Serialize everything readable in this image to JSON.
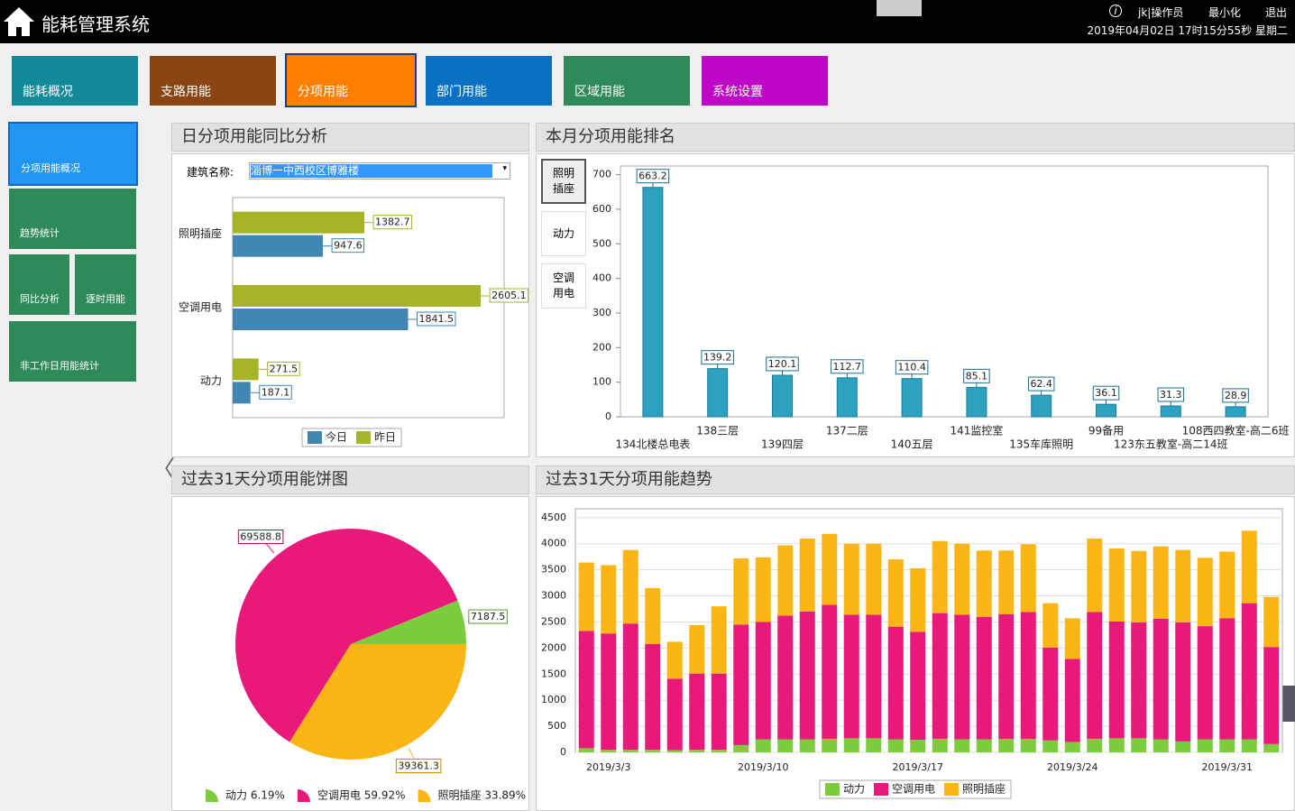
{
  "header": {
    "title": "能耗管理系统",
    "user": "jk|操作员",
    "minimize": "最小化",
    "logout": "退出",
    "datetime": "2019年04月02日 17时15分55秒 星期二"
  },
  "nav": [
    "能耗概况",
    "支路用能",
    "分项用能",
    "部门用能",
    "区域用能",
    "系统设置"
  ],
  "sidebar": [
    "分项用能概况",
    "趋势统计",
    "同比分析",
    "逐时用能",
    "非工作日用能统计"
  ],
  "panels": {
    "building_label": "建筑名称:",
    "building": "淄博一中西校区博雅楼",
    "ranking_tabs": [
      "照明插座",
      "动力",
      "空调用电"
    ]
  },
  "chart_data": [
    {
      "type": "bar",
      "orientation": "horizontal",
      "title": "日分项用能同比分析",
      "categories": [
        "照明插座",
        "空调用电",
        "动力"
      ],
      "series": [
        {
          "name": "今日",
          "color": "#3f86b3",
          "values": [
            947.6,
            1841.5,
            187.1
          ]
        },
        {
          "name": "昨日",
          "color": "#a6b526",
          "values": [
            1382.7,
            2605.1,
            271.5
          ]
        }
      ],
      "xlim": [
        0,
        2850
      ]
    },
    {
      "type": "bar",
      "title": "本月分项用能排名",
      "categories": [
        "134北楼总电表",
        "138三层",
        "139四层",
        "137二层",
        "140五层",
        "141监控室",
        "135车库照明",
        "99备用",
        "123东五教室-高二14班",
        "108西四教室-高二6班"
      ],
      "values": [
        663.2,
        139.2,
        120.1,
        112.7,
        110.4,
        85.1,
        62.4,
        36.1,
        31.3,
        28.9
      ],
      "color": "#2ea0c0",
      "ylim": [
        0,
        725
      ],
      "yticks": [
        0,
        100,
        200,
        300,
        400,
        500,
        600,
        700
      ]
    },
    {
      "type": "pie",
      "title": "过去31天分项用能饼图",
      "categories": [
        "动力",
        "空调用电",
        "照明插座"
      ],
      "values": [
        7187.5,
        69588.8,
        39361.3
      ],
      "colors": [
        "#7dcc3d",
        "#e8197b",
        "#fbb616"
      ],
      "legend_labels": [
        "动力 6.19%",
        "空调用电 59.92%",
        "照明插座 33.89%"
      ]
    },
    {
      "type": "bar",
      "stacked": true,
      "title": "过去31天分项用能趋势",
      "categories": [
        null,
        "2019/3/3",
        null,
        null,
        null,
        null,
        null,
        null,
        "2019/3/10",
        null,
        null,
        null,
        null,
        null,
        null,
        "2019/3/17",
        null,
        null,
        null,
        null,
        null,
        null,
        "2019/3/24",
        null,
        null,
        null,
        null,
        null,
        null,
        "2019/3/31",
        null,
        null
      ],
      "series": [
        {
          "name": "动力",
          "color": "#7dcc3d",
          "values": [
            80,
            50,
            50,
            50,
            40,
            50,
            50,
            140,
            250,
            250,
            250,
            260,
            270,
            270,
            250,
            240,
            260,
            250,
            250,
            260,
            260,
            230,
            200,
            260,
            270,
            270,
            250,
            210,
            250,
            250,
            250,
            160
          ]
        },
        {
          "name": "空调用电",
          "color": "#e8197b",
          "values": [
            2250,
            2230,
            2420,
            2030,
            1370,
            1460,
            1460,
            2310,
            2250,
            2370,
            2450,
            2570,
            2370,
            2370,
            2160,
            2070,
            2410,
            2390,
            2350,
            2390,
            2430,
            1780,
            1590,
            2430,
            2240,
            2220,
            2310,
            2280,
            2170,
            2320,
            2610,
            1860
          ]
        },
        {
          "name": "照明插座",
          "color": "#fbb616",
          "values": [
            1310,
            1310,
            1410,
            1070,
            710,
            930,
            1290,
            1270,
            1240,
            1350,
            1400,
            1360,
            1360,
            1360,
            1290,
            1220,
            1380,
            1360,
            1270,
            1220,
            1300,
            850,
            780,
            1410,
            1400,
            1370,
            1390,
            1390,
            1310,
            1280,
            1390,
            960
          ]
        }
      ],
      "ylim": [
        0,
        4670
      ],
      "yticks": [
        0,
        500,
        1000,
        1500,
        2000,
        2500,
        3000,
        3500,
        4000,
        4500
      ],
      "grid": true
    }
  ]
}
